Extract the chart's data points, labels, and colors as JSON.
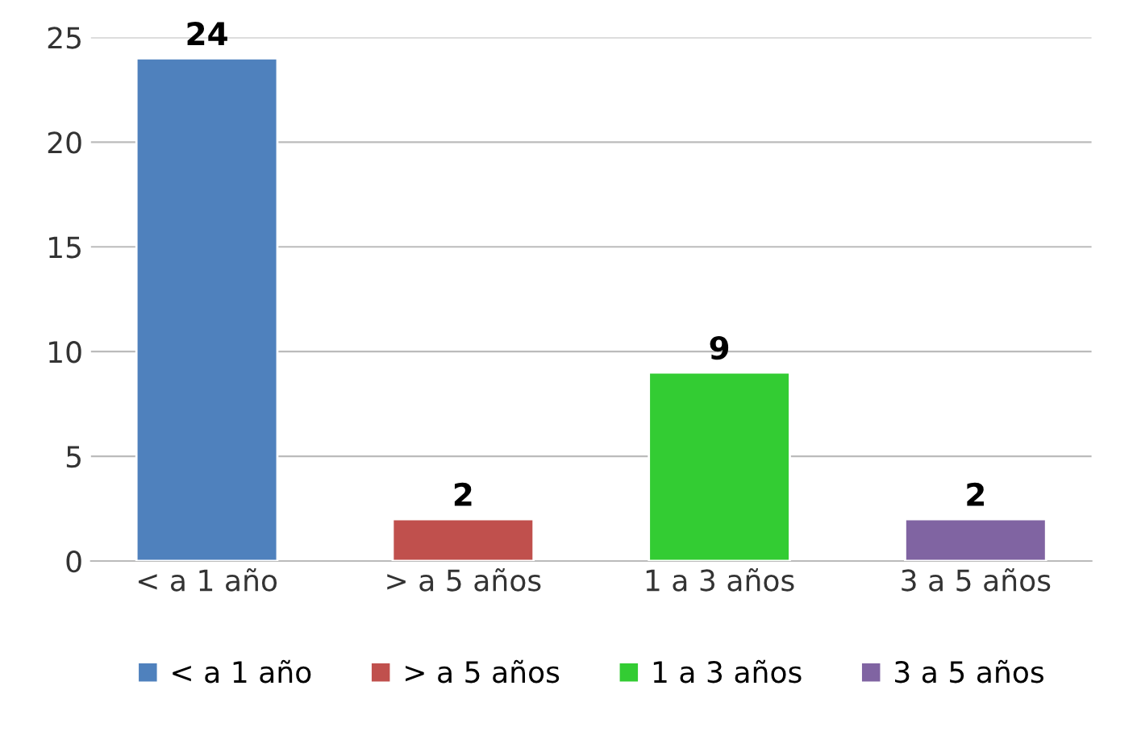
{
  "chart_data": {
    "type": "bar",
    "categories": [
      "< a 1 año",
      "> a 5 años",
      "1 a 3 años",
      "3 a 5 años"
    ],
    "series": [
      {
        "name": "< a 1 año",
        "color": "#4f81bd",
        "values": [
          24,
          null,
          null,
          null
        ]
      },
      {
        "name": "> a 5 años",
        "color": "#c0504d",
        "values": [
          null,
          2,
          null,
          null
        ]
      },
      {
        "name": "1 a 3 años",
        "color": "#33cc33",
        "values": [
          null,
          null,
          9,
          null
        ]
      },
      {
        "name": "3 a 5 años",
        "color": "#8064a2",
        "values": [
          null,
          null,
          null,
          2
        ]
      }
    ],
    "ylim": [
      0,
      25
    ],
    "yticks": [
      0,
      5,
      10,
      15,
      20,
      25
    ],
    "grid": "y",
    "legend": "bottom",
    "data_labels": true
  }
}
